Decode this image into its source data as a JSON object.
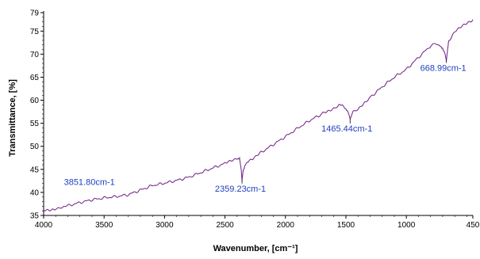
{
  "chart_data": {
    "type": "line",
    "xlabel": "Wavenumber, [cm⁻¹]",
    "ylabel": "Transmittance, [%]",
    "x_reversed": true,
    "xlim": [
      4000,
      450
    ],
    "ylim": [
      35,
      79
    ],
    "x_ticks": [
      4000,
      3500,
      3000,
      2500,
      2000,
      1500,
      1000,
      450
    ],
    "y_ticks": [
      35,
      40,
      45,
      50,
      55,
      60,
      65,
      70,
      75,
      79
    ],
    "grid": false,
    "series": [
      {
        "line_color": "#7b2f8e",
        "x": [
          4000,
          3950,
          3900,
          3851.8,
          3800,
          3700,
          3600,
          3500,
          3400,
          3300,
          3200,
          3100,
          3000,
          2900,
          2800,
          2700,
          2600,
          2500,
          2450,
          2400,
          2380,
          2365,
          2359.23,
          2350,
          2330,
          2300,
          2250,
          2200,
          2100,
          2000,
          1900,
          1800,
          1700,
          1650,
          1600,
          1560,
          1530,
          1500,
          1480,
          1465.44,
          1440,
          1400,
          1350,
          1300,
          1200,
          1100,
          1000,
          900,
          800,
          760,
          720,
          700,
          680,
          668.99,
          650,
          600,
          550,
          500,
          450
        ],
        "y": [
          36.0,
          36.2,
          36.5,
          36.8,
          37.1,
          37.8,
          38.4,
          38.8,
          39.1,
          39.5,
          40.5,
          41.5,
          42.0,
          42.6,
          43.3,
          44.3,
          45.3,
          46.3,
          47.0,
          47.4,
          47.5,
          45.0,
          42.6,
          44.8,
          46.3,
          46.9,
          47.8,
          48.7,
          50.4,
          52.1,
          53.9,
          55.6,
          57.0,
          57.6,
          58.3,
          58.9,
          58.8,
          58.2,
          57.4,
          56.0,
          57.4,
          58.0,
          59.2,
          60.6,
          62.9,
          65.0,
          66.7,
          69.3,
          71.8,
          72.3,
          71.6,
          71.0,
          70.0,
          68.8,
          72.8,
          75.0,
          75.8,
          76.7,
          77.5
        ]
      }
    ],
    "annotations": [
      {
        "text": "3851.80cm-1",
        "x": 3851.8,
        "y": 36.8
      },
      {
        "text": "2359.23cm-1",
        "x": 2359.23,
        "y": 42.6
      },
      {
        "text": "1465.44cm-1",
        "x": 1465.44,
        "y": 56.0
      },
      {
        "text": "668.99cm-1",
        "x": 668.99,
        "y": 68.8
      }
    ],
    "colors": {
      "line": "#7b2f8e",
      "annotation": "#1f3fbf",
      "axis": "#000000"
    }
  }
}
